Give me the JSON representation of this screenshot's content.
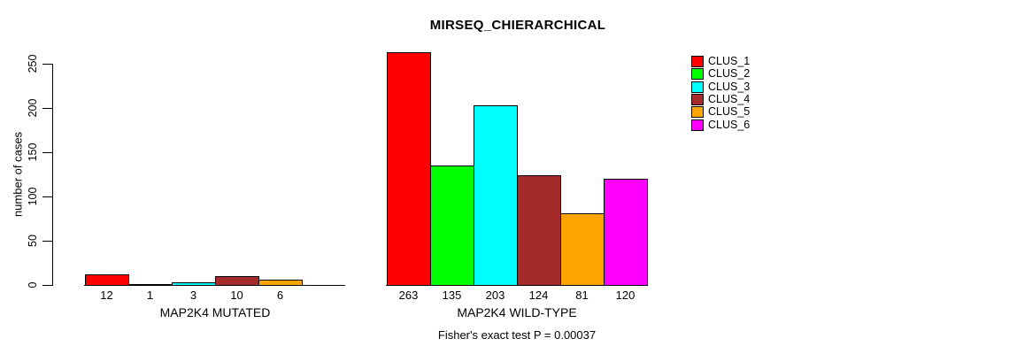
{
  "chart_data": {
    "type": "bar",
    "title": "MIRSEQ_CHIERARCHICAL",
    "ylabel": "number of cases",
    "ylim": [
      0,
      250
    ],
    "yticks": [
      0,
      50,
      100,
      150,
      200,
      250
    ],
    "grid": false,
    "legend_position": "right",
    "categories": [
      "CLUS_1",
      "CLUS_2",
      "CLUS_3",
      "CLUS_4",
      "CLUS_5",
      "CLUS_6"
    ],
    "colors": [
      "#FF0000",
      "#00FF00",
      "#00FFFF",
      "#A52A2A",
      "#FFA500",
      "#FF00FF"
    ],
    "groups": [
      {
        "label": "MAP2K4 MUTATED",
        "values": [
          12,
          1,
          3,
          10,
          6,
          0
        ],
        "bar_labels": [
          "12",
          "1",
          "3",
          "10",
          "6",
          ""
        ]
      },
      {
        "label": "MAP2K4 WILD-TYPE",
        "values": [
          263,
          135,
          203,
          124,
          81,
          120
        ],
        "bar_labels": [
          "263",
          "135",
          "203",
          "124",
          "81",
          "120"
        ]
      }
    ],
    "footer": "Fisher's exact test P = 0.00037"
  }
}
